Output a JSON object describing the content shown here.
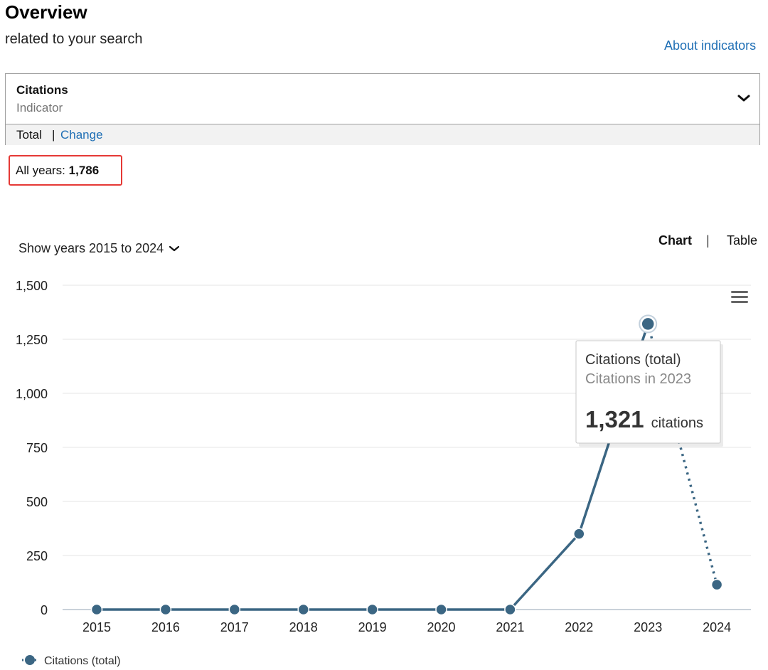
{
  "header": {
    "title": "Overview",
    "subtitle": "related to your search",
    "about_link": "About indicators"
  },
  "indicator": {
    "name": "Citations",
    "label": "Indicator",
    "mode": "Total",
    "separator": "|",
    "change_link": "Change"
  },
  "summary": {
    "label": "All years: ",
    "value": "1,786"
  },
  "controls": {
    "year_range": "Show years 2015 to 2024",
    "view_chart": "Chart",
    "view_separator": "|",
    "view_table": "Table"
  },
  "icons": {
    "dropdown": "chevron-down-icon",
    "menu": "hamburger-menu-icon"
  },
  "colors": {
    "series": "#3b6683",
    "link": "#1f6fb5",
    "highlight_border": "#e53935"
  },
  "chart_data": {
    "type": "line",
    "x": [
      2015,
      2016,
      2017,
      2018,
      2019,
      2020,
      2021,
      2022,
      2023,
      2024
    ],
    "series": [
      {
        "name": "Citations (total)",
        "values": [
          0,
          0,
          0,
          0,
          0,
          0,
          0,
          350,
          1321,
          115
        ]
      }
    ],
    "ylim": [
      0,
      1500
    ],
    "yticks": [
      0,
      250,
      500,
      750,
      1000,
      1250,
      1500
    ],
    "ytick_labels": [
      "0",
      "250",
      "500",
      "750",
      "1,000",
      "1,250",
      "1,500"
    ],
    "grid": true,
    "legend": "bottom-left",
    "last_segment_style": "dotted",
    "tooltip": {
      "series": "Citations (total)",
      "detail": "Citations in 2023",
      "value": "1,321",
      "unit": "citations"
    }
  }
}
